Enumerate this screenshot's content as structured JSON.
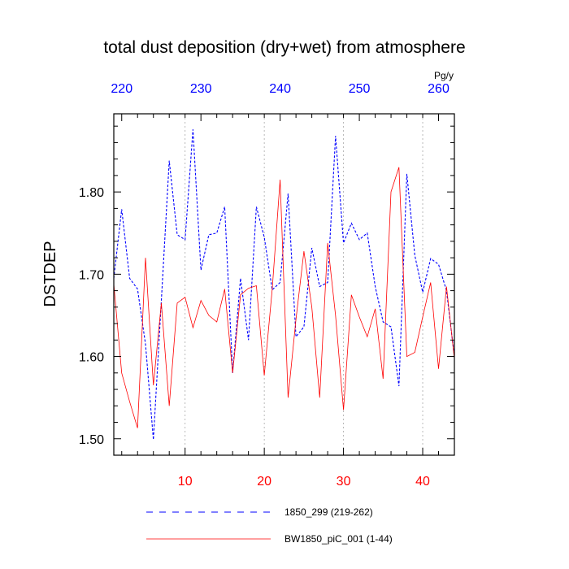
{
  "chart_data": {
    "type": "line",
    "title": "total dust deposition (dry+wet) from atmosphere",
    "ylabel": "DSTDEP",
    "units": "Pg/y",
    "ylim": [
      1.48,
      1.895
    ],
    "yticks": [
      1.5,
      1.6,
      1.7,
      1.8
    ],
    "ytick_labels": [
      "1.50",
      "1.60",
      "1.70",
      "1.80"
    ],
    "bottom_axis": {
      "range": [
        1,
        44
      ],
      "ticks": [
        10,
        20,
        30,
        40
      ],
      "tick_labels": [
        "10",
        "20",
        "30",
        "40"
      ],
      "color": "#ff0000"
    },
    "top_axis": {
      "range": [
        219,
        262
      ],
      "ticks": [
        220,
        230,
        240,
        250,
        260
      ],
      "tick_labels": [
        "220",
        "230",
        "240",
        "250",
        "260"
      ],
      "color": "#0000ff"
    },
    "grid": "vertical dotted at major ticks",
    "legend_position": "bottom-center",
    "series": [
      {
        "name": "1850_299 (219-262)",
        "color": "#0000ff",
        "dash": "dashed",
        "x": [
          219,
          220,
          221,
          222,
          223,
          224,
          225,
          226,
          227,
          228,
          229,
          230,
          231,
          232,
          233,
          234,
          235,
          236,
          237,
          238,
          239,
          240,
          241,
          242,
          243,
          244,
          245,
          246,
          247,
          248,
          249,
          250,
          251,
          252,
          253,
          254,
          255,
          256,
          257,
          258,
          259,
          260,
          261,
          262
        ],
        "values": [
          1.695,
          1.779,
          1.695,
          1.682,
          1.615,
          1.499,
          1.668,
          1.838,
          1.748,
          1.742,
          1.876,
          1.705,
          1.748,
          1.75,
          1.782,
          1.58,
          1.695,
          1.62,
          1.782,
          1.745,
          1.681,
          1.69,
          1.798,
          1.624,
          1.636,
          1.732,
          1.685,
          1.69,
          1.868,
          1.738,
          1.762,
          1.742,
          1.75,
          1.685,
          1.642,
          1.636,
          1.564,
          1.822,
          1.723,
          1.678,
          1.719,
          1.712,
          1.68,
          1.6
        ]
      },
      {
        "name": "BW1850_piC_001 (1-44)",
        "color": "#ff0000",
        "dash": "solid",
        "x": [
          1,
          2,
          3,
          4,
          5,
          6,
          7,
          8,
          9,
          10,
          11,
          12,
          13,
          14,
          15,
          16,
          17,
          18,
          19,
          20,
          21,
          22,
          23,
          24,
          25,
          26,
          27,
          28,
          29,
          30,
          31,
          32,
          33,
          34,
          35,
          36,
          37,
          38,
          39,
          40,
          41,
          42,
          43,
          44
        ],
        "values": [
          1.688,
          1.58,
          1.545,
          1.513,
          1.72,
          1.565,
          1.665,
          1.54,
          1.665,
          1.672,
          1.635,
          1.668,
          1.65,
          1.642,
          1.682,
          1.58,
          1.675,
          1.683,
          1.686,
          1.577,
          1.682,
          1.815,
          1.55,
          1.645,
          1.728,
          1.66,
          1.55,
          1.738,
          1.65,
          1.535,
          1.675,
          1.648,
          1.624,
          1.658,
          1.573,
          1.8,
          1.83,
          1.6,
          1.605,
          1.648,
          1.69,
          1.585,
          1.685,
          1.597
        ]
      }
    ]
  }
}
